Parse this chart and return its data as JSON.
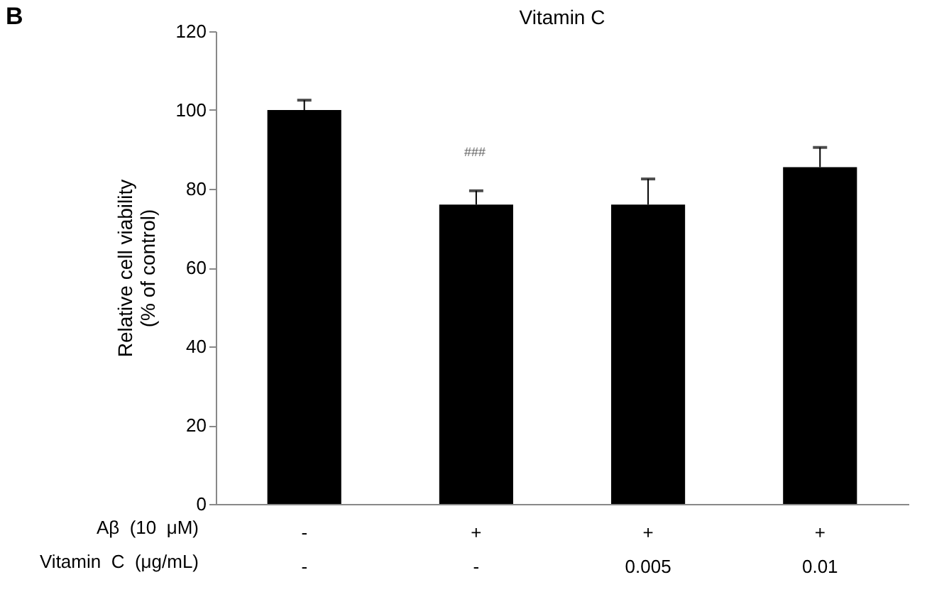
{
  "chart_data": {
    "type": "bar",
    "title": "Vitamin C",
    "ylabel": "Relative cell viability\n(% of control)",
    "categories": [
      "-\n-",
      "+\n-",
      "+\n0.005",
      "+\n0.01"
    ],
    "values": [
      100,
      76,
      76,
      85.5
    ],
    "color": "#000000",
    "errors": [
      [
        100,
        102.5
      ],
      [
        76,
        79.5
      ],
      [
        76,
        82.5
      ],
      [
        85.5,
        90.5
      ]
    ],
    "ylim": [
      0,
      120
    ],
    "yticks": [
      0,
      20,
      40,
      60,
      80,
      100,
      120
    ],
    "grid": false,
    "annotations": [
      "B",
      "Aβ  (10  μM)",
      "Vitamin  C  (μg/mL)",
      "###"
    ]
  }
}
